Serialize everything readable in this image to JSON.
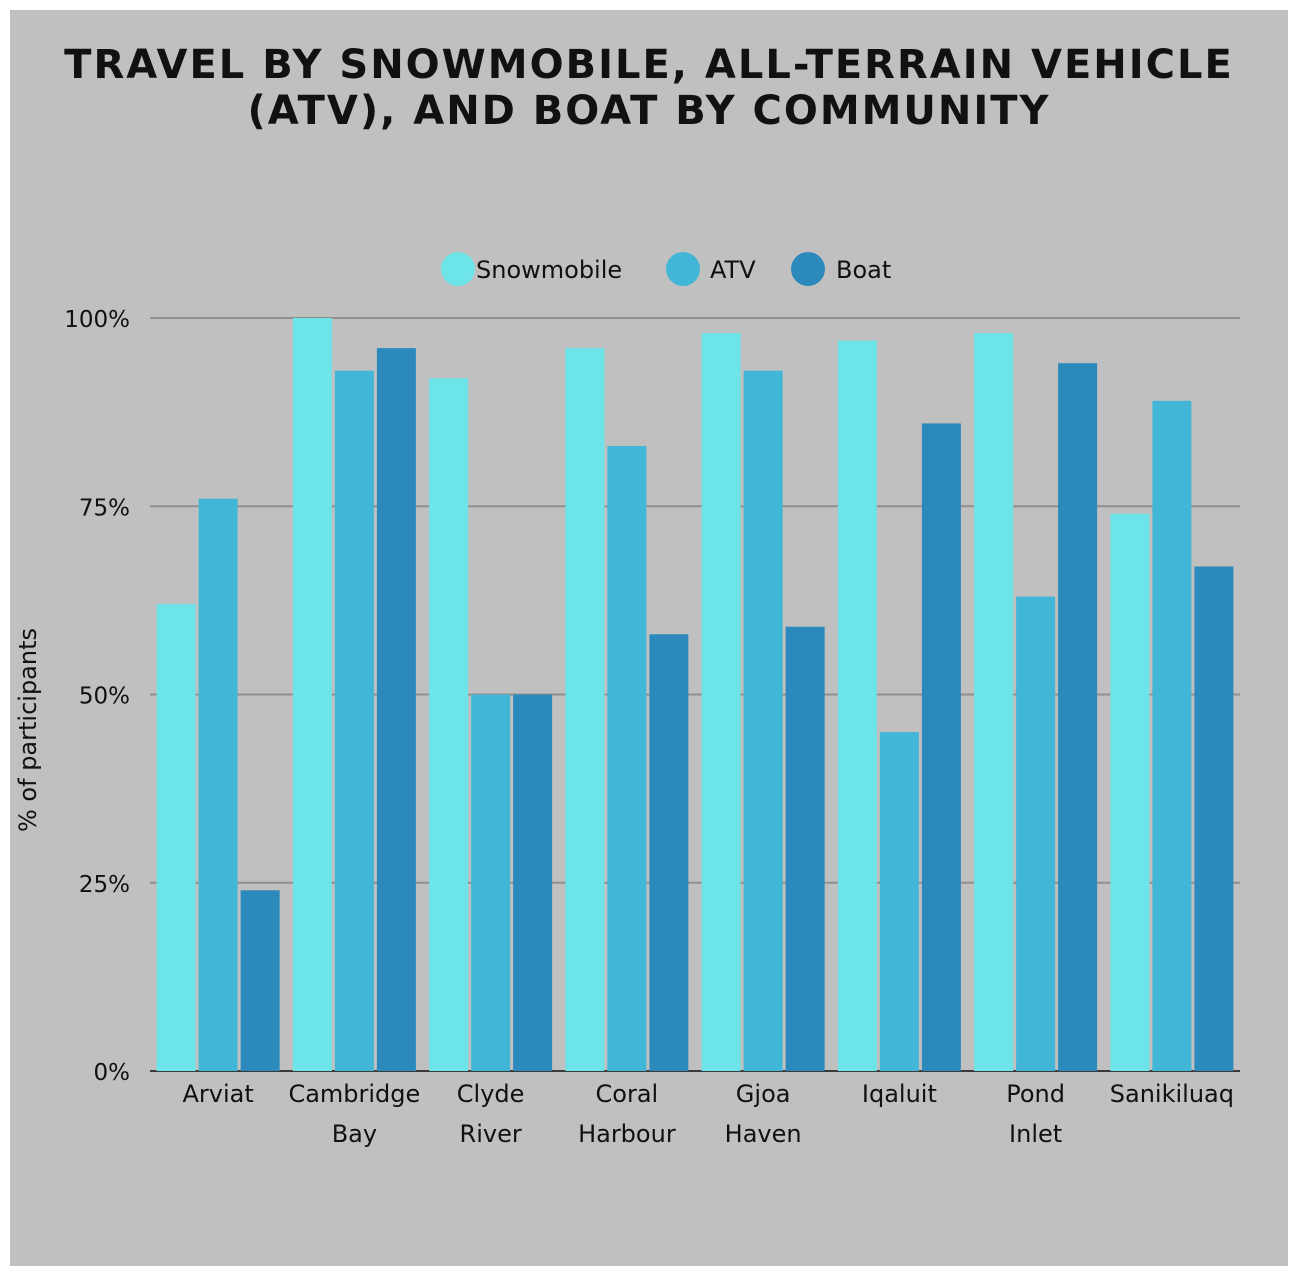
{
  "title_lines": [
    "TRAVEL BY SNOWMOBILE, ALL-TERRAIN VEHICLE",
    "(ATV), AND BOAT BY COMMUNITY"
  ],
  "chart_data": {
    "type": "bar",
    "title": "TRAVEL BY SNOWMOBILE, ALL-TERRAIN VEHICLE (ATV), AND BOAT BY COMMUNITY",
    "ylabel": "% of participants",
    "xlabel": "",
    "ylim": [
      0,
      100
    ],
    "yticks": [
      0,
      25,
      50,
      75,
      100
    ],
    "ytick_labels": [
      "0%",
      "25%",
      "50%",
      "75%",
      "100%"
    ],
    "grid": true,
    "legend_position": "top-center",
    "categories": [
      "Arviat",
      "Cambridge Bay",
      "Clyde River",
      "Coral Harbour",
      "Gjoa Haven",
      "Iqaluit",
      "Pond Inlet",
      "Sanikiluaq"
    ],
    "category_lines": [
      [
        "Arviat"
      ],
      [
        "Cambridge",
        "Bay"
      ],
      [
        "Clyde",
        "River"
      ],
      [
        "Coral",
        "Harbour"
      ],
      [
        "Gjoa",
        "Haven"
      ],
      [
        "Iqaluit"
      ],
      [
        "Pond",
        "Inlet"
      ],
      [
        "Sanikiluaq"
      ]
    ],
    "series": [
      {
        "name": "Snowmobile",
        "color": "#6de4e8",
        "values": [
          62,
          100,
          92,
          96,
          98,
          97,
          98,
          74
        ]
      },
      {
        "name": "ATV",
        "color": "#41b6d6",
        "values": [
          76,
          93,
          50,
          83,
          93,
          45,
          63,
          89
        ]
      },
      {
        "name": "Boat",
        "color": "#2c89bb",
        "values": [
          24,
          96,
          50,
          58,
          59,
          86,
          94,
          67
        ]
      }
    ]
  },
  "colors": {
    "background": "#c0c0c0",
    "gridline": "#8f8f8f",
    "text": "#111111"
  }
}
